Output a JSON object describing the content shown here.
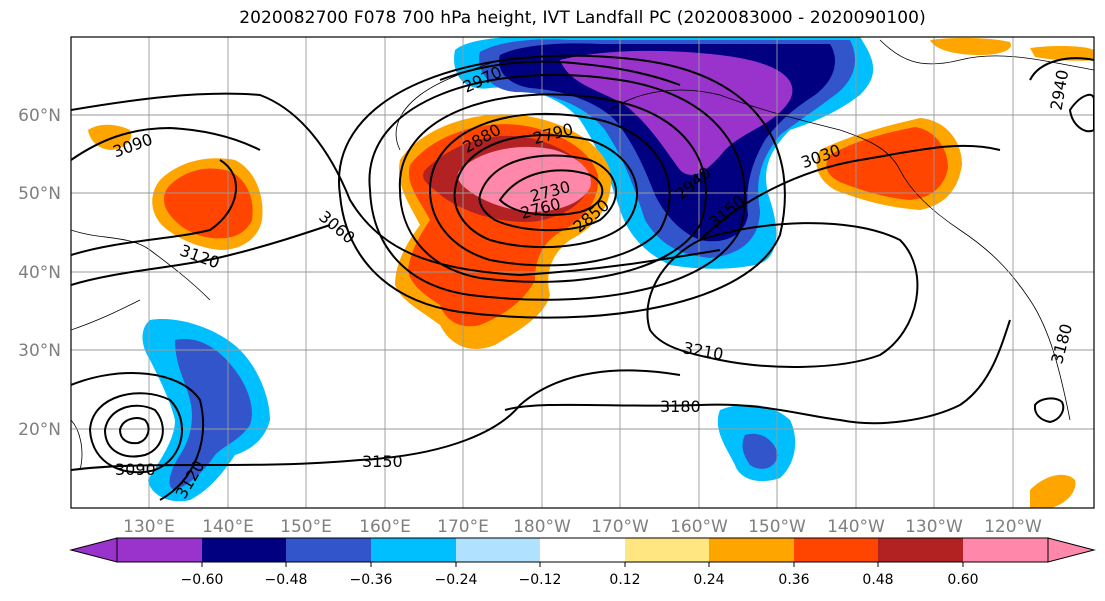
{
  "title": "2020082700 F078 700 hPa height, IVT Landfall PC (2020083000 - 2020090100)",
  "map": {
    "lon_labels": [
      "130°E",
      "140°E",
      "150°E",
      "160°E",
      "170°E",
      "180°W",
      "170°W",
      "160°W",
      "150°W",
      "140°W",
      "130°W",
      "120°W"
    ],
    "lat_labels": [
      "60°N",
      "50°N",
      "40°N",
      "30°N",
      "20°N"
    ],
    "contour_labels": [
      "2970",
      "3090",
      "3120",
      "2880",
      "2790",
      "2730",
      "2760",
      "2850",
      "3060",
      "2940",
      "3030",
      "3150",
      "2940",
      "3210",
      "3180",
      "3150",
      "3090",
      "3120",
      "3180"
    ],
    "line_color": "#000000",
    "grid": true
  },
  "colorbar": {
    "tick_labels": [
      "−0.60",
      "−0.48",
      "−0.36",
      "−0.24",
      "−0.12",
      "0.12",
      "0.24",
      "0.36",
      "0.48",
      "0.60"
    ],
    "colors": [
      "#9933cc",
      "#000080",
      "#3355cc",
      "#00bfff",
      "#b0e2ff",
      "#ffffff",
      "#ffe680",
      "#ffa500",
      "#ff4500",
      "#b22222",
      "#ff88aa"
    ]
  }
}
